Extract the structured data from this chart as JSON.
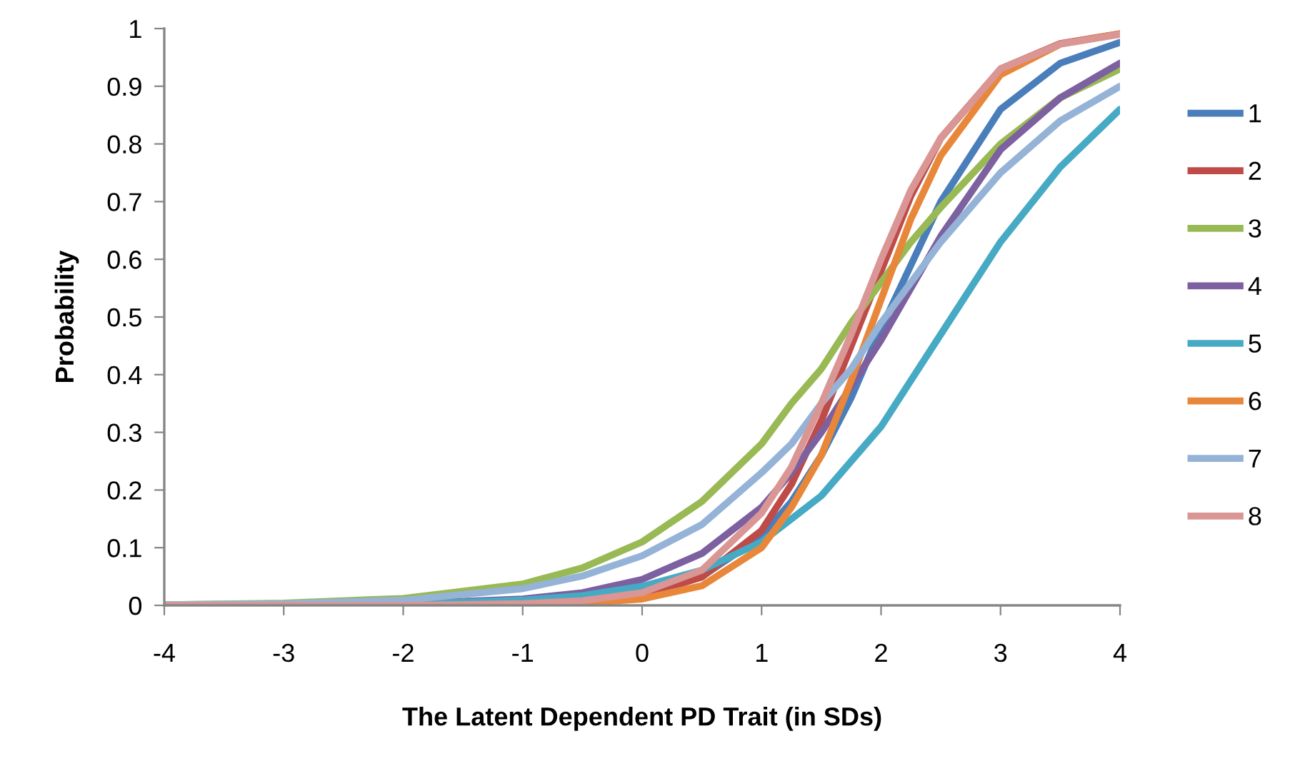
{
  "chart_data": {
    "type": "line",
    "xlabel": "The Latent Dependent PD Trait (in SDs)",
    "ylabel": "Probability",
    "x": [
      -4,
      -3,
      -2,
      -1,
      -0.5,
      0,
      0.5,
      1,
      1.25,
      1.5,
      1.75,
      2,
      2.25,
      2.5,
      3,
      3.5,
      4
    ],
    "xlim": [
      -4,
      4
    ],
    "xticks": [
      -4,
      -3,
      -2,
      -1,
      0,
      1,
      2,
      3,
      4
    ],
    "ylim": [
      0,
      1
    ],
    "yticks": [
      0,
      0.1,
      0.2,
      0.3,
      0.4,
      0.5,
      0.6,
      0.7,
      0.8,
      0.9,
      1
    ],
    "grid": false,
    "legend": "right",
    "marker": "none",
    "line_style": "solid",
    "series": [
      {
        "name": "1",
        "color": "#4a7ebb",
        "values": [
          0,
          0,
          0,
          0.003,
          0.008,
          0.02,
          0.05,
          0.12,
          0.18,
          0.26,
          0.36,
          0.48,
          0.59,
          0.7,
          0.86,
          0.94,
          0.976
        ]
      },
      {
        "name": "2",
        "color": "#be4b48",
        "values": [
          0,
          0,
          0,
          0.002,
          0.006,
          0.017,
          0.049,
          0.13,
          0.21,
          0.32,
          0.45,
          0.58,
          0.71,
          0.81,
          0.93,
          0.974,
          0.991
        ]
      },
      {
        "name": "3",
        "color": "#98b954",
        "values": [
          0.001,
          0.004,
          0.012,
          0.037,
          0.065,
          0.11,
          0.18,
          0.28,
          0.35,
          0.41,
          0.49,
          0.56,
          0.63,
          0.69,
          0.8,
          0.88,
          0.93
        ]
      },
      {
        "name": "4",
        "color": "#7d60a0",
        "values": [
          0,
          0.001,
          0.003,
          0.011,
          0.022,
          0.045,
          0.09,
          0.17,
          0.23,
          0.3,
          0.38,
          0.46,
          0.55,
          0.64,
          0.79,
          0.88,
          0.94
        ]
      },
      {
        "name": "5",
        "color": "#46aac5",
        "values": [
          0,
          0.001,
          0.002,
          0.009,
          0.017,
          0.033,
          0.061,
          0.11,
          0.15,
          0.19,
          0.25,
          0.31,
          0.39,
          0.47,
          0.63,
          0.76,
          0.86
        ]
      },
      {
        "name": "6",
        "color": "#e8873a",
        "values": [
          null,
          null,
          null,
          0.001,
          0.004,
          0.011,
          0.034,
          0.1,
          0.17,
          0.26,
          0.39,
          0.53,
          0.67,
          0.78,
          0.92,
          0.973,
          0.991
        ]
      },
      {
        "name": "7",
        "color": "#95b3d7",
        "values": [
          0.001,
          0.003,
          0.009,
          0.029,
          0.051,
          0.086,
          0.14,
          0.23,
          0.28,
          0.35,
          0.41,
          0.49,
          0.56,
          0.63,
          0.75,
          0.84,
          0.9
        ]
      },
      {
        "name": "8",
        "color": "#d99694",
        "values": [
          0,
          0,
          0,
          0.003,
          0.008,
          0.022,
          0.061,
          0.16,
          0.24,
          0.35,
          0.47,
          0.6,
          0.72,
          0.81,
          0.93,
          0.973,
          0.99
        ]
      }
    ]
  }
}
